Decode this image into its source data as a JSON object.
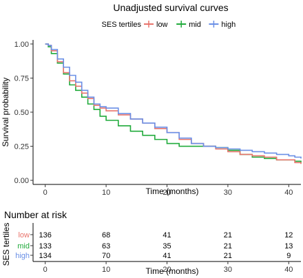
{
  "colors": {
    "low": "#e8736b",
    "mid": "#1faa3a",
    "high": "#6a8fe6"
  },
  "chart_data": [
    {
      "type": "line",
      "step": true,
      "title": "Unadjusted survival curves",
      "xlabel": "Time (months)",
      "ylabel": "Survival probability",
      "xlim": [
        -2,
        42
      ],
      "ylim": [
        -0.03,
        1.03
      ],
      "xticks": [
        "0",
        "10",
        "20",
        "30",
        "40"
      ],
      "yticks": [
        "0.00",
        "0.25",
        "0.50",
        "0.75",
        "1.00"
      ],
      "grid": false,
      "legend": {
        "title": "SES tertiles",
        "position": "top"
      },
      "series": [
        {
          "name": "low",
          "x": [
            0,
            0.5,
            1,
            2,
            3,
            4,
            5,
            6,
            7,
            8,
            9,
            10,
            12,
            14,
            16,
            18,
            20,
            22,
            24,
            26,
            28,
            30,
            32,
            34,
            36,
            38,
            40,
            41,
            42
          ],
          "y": [
            1.0,
            0.99,
            0.95,
            0.87,
            0.79,
            0.73,
            0.69,
            0.64,
            0.6,
            0.55,
            0.53,
            0.51,
            0.48,
            0.45,
            0.42,
            0.38,
            0.35,
            0.3,
            0.27,
            0.25,
            0.23,
            0.21,
            0.19,
            0.18,
            0.17,
            0.15,
            0.15,
            0.13,
            0.12
          ]
        },
        {
          "name": "mid",
          "x": [
            0,
            0.5,
            1,
            2,
            3,
            4,
            5,
            6,
            7,
            8,
            9,
            10,
            12,
            14,
            16,
            18,
            20,
            22,
            24,
            26,
            28,
            30,
            32,
            34,
            36,
            38,
            40,
            41,
            42
          ],
          "y": [
            1.0,
            0.98,
            0.93,
            0.86,
            0.78,
            0.7,
            0.66,
            0.61,
            0.56,
            0.52,
            0.47,
            0.44,
            0.4,
            0.36,
            0.33,
            0.3,
            0.27,
            0.25,
            0.25,
            0.25,
            0.24,
            0.22,
            0.19,
            0.17,
            0.16,
            0.15,
            0.15,
            0.14,
            0.13
          ]
        },
        {
          "name": "high",
          "x": [
            0,
            0.5,
            1,
            2,
            3,
            4,
            5,
            6,
            7,
            8,
            9,
            10,
            12,
            14,
            16,
            18,
            20,
            22,
            24,
            26,
            28,
            30,
            32,
            34,
            36,
            38,
            40,
            41,
            42
          ],
          "y": [
            1.0,
            0.99,
            0.96,
            0.89,
            0.83,
            0.77,
            0.72,
            0.66,
            0.61,
            0.56,
            0.54,
            0.53,
            0.49,
            0.45,
            0.42,
            0.39,
            0.35,
            0.31,
            0.27,
            0.25,
            0.24,
            0.23,
            0.22,
            0.21,
            0.2,
            0.19,
            0.18,
            0.17,
            0.16
          ]
        }
      ]
    },
    {
      "type": "table",
      "title": "Number at risk",
      "ylabel": "SES tertiles",
      "xlabel": "Time (months)",
      "xticks": [
        "0",
        "10",
        "20",
        "30",
        "40"
      ],
      "x": [
        0,
        10,
        20,
        30,
        40
      ],
      "rows": [
        {
          "name": "low",
          "values": [
            "136",
            "68",
            "41",
            "21",
            "12"
          ]
        },
        {
          "name": "mid",
          "values": [
            "133",
            "63",
            "35",
            "21",
            "13"
          ]
        },
        {
          "name": "high",
          "values": [
            "134",
            "70",
            "41",
            "21",
            "9"
          ]
        }
      ]
    }
  ]
}
